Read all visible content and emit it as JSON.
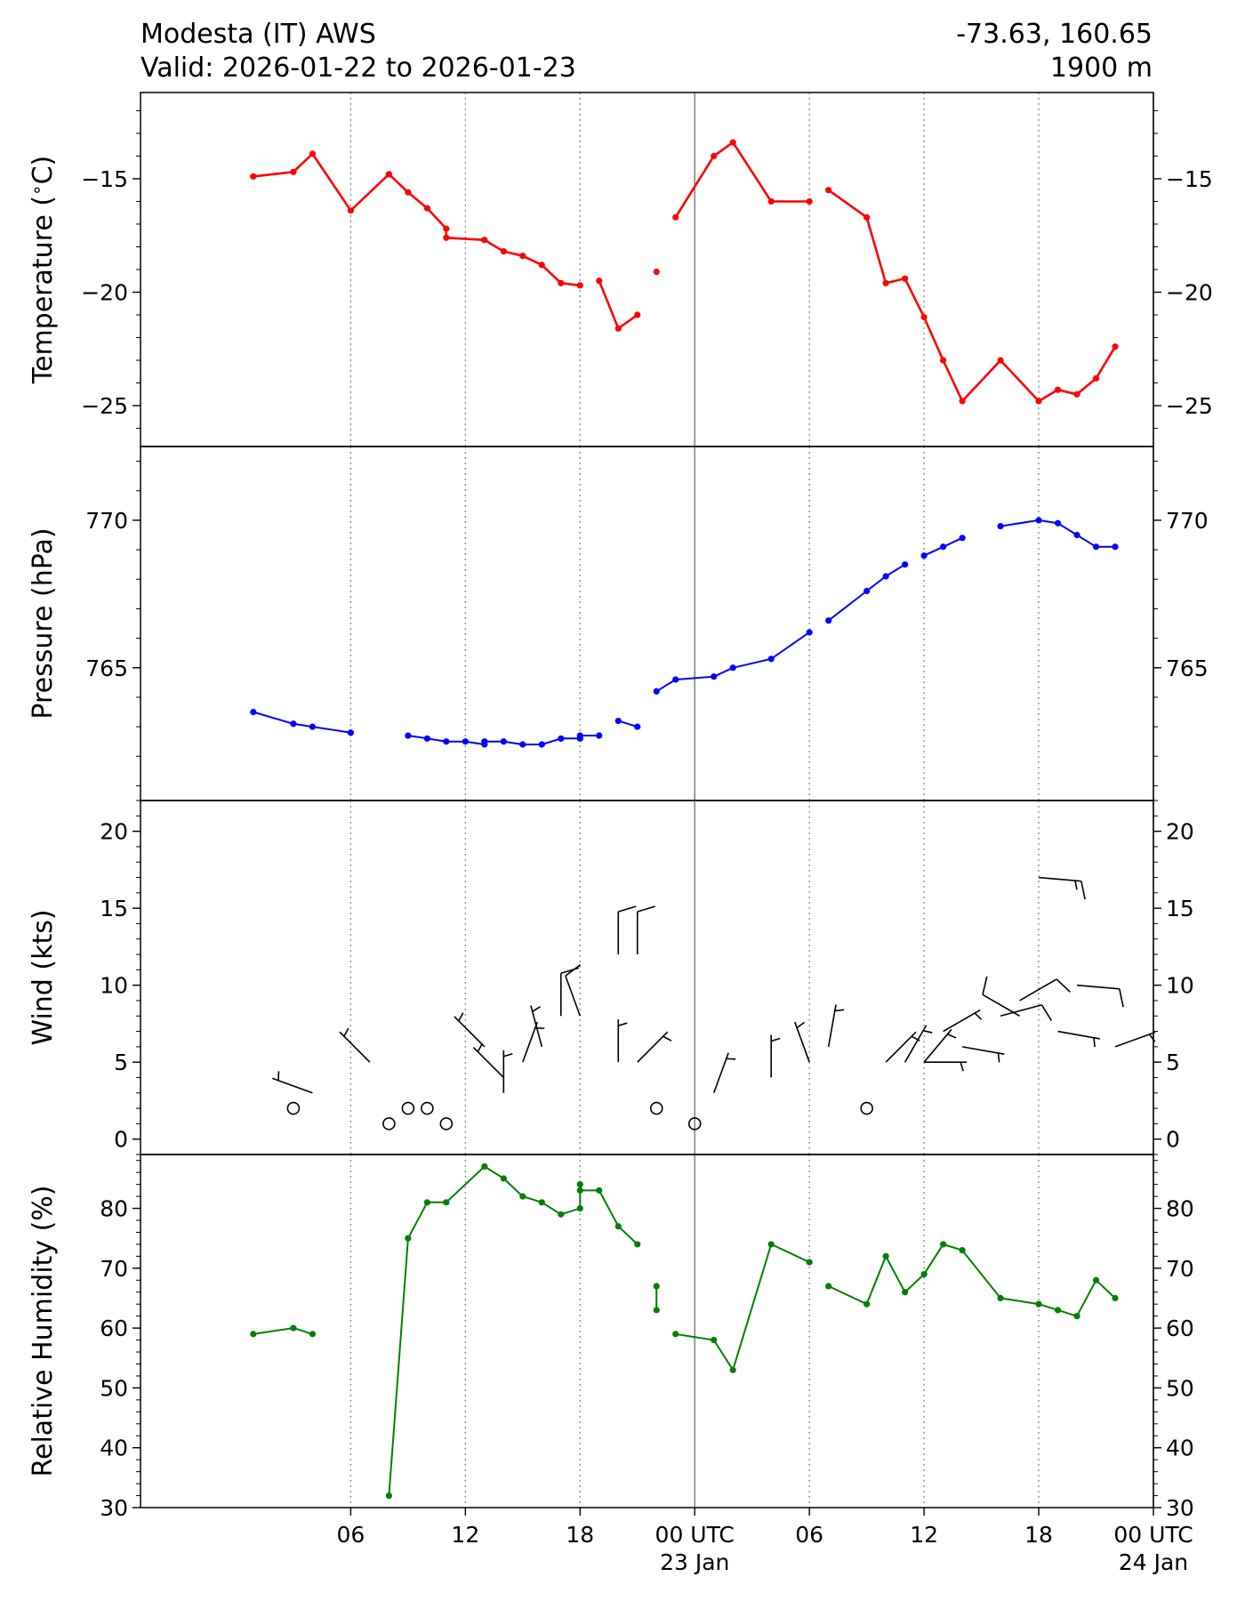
{
  "header": {
    "title": "Modesta (IT) AWS",
    "valid": "Valid: 2026-01-22 to 2026-01-23",
    "coords": "-73.63, 160.65",
    "elevation": "1900 m"
  },
  "x_axis": {
    "range_hours": [
      -5,
      48
    ],
    "major_ticks": [
      {
        "h": 6,
        "label": "06"
      },
      {
        "h": 12,
        "label": "12"
      },
      {
        "h": 18,
        "label": "18"
      },
      {
        "h": 24,
        "label": "00 UTC",
        "sub": "23 Jan"
      },
      {
        "h": 30,
        "label": "06"
      },
      {
        "h": 36,
        "label": "12"
      },
      {
        "h": 42,
        "label": "18"
      },
      {
        "h": 48,
        "label": "00 UTC",
        "sub": "24 Jan"
      }
    ],
    "day_lines": [
      24,
      48
    ],
    "dotted_lines": [
      6,
      12,
      18,
      30,
      36,
      42
    ]
  },
  "chart_data": [
    {
      "type": "line",
      "ylabel": "Temperature ($^\\circ$C)",
      "ylabel_text": "Temperature (",
      "ylabel_after": "C)",
      "color": "#ff0000",
      "ylim": [
        -26.8,
        -11.2
      ],
      "yticks": [
        -15,
        -20,
        -25
      ],
      "ytick_labels": [
        "−15",
        "−20",
        "−25"
      ],
      "minor_step": 1,
      "segments": [
        [
          [
            0.9,
            -14.9
          ],
          [
            3,
            -14.7
          ],
          [
            4,
            -13.9
          ],
          [
            6,
            -16.4
          ],
          [
            8,
            -14.8
          ],
          [
            9,
            -15.6
          ],
          [
            10,
            -16.3
          ],
          [
            11,
            -17.2
          ],
          [
            11,
            -17.6
          ],
          [
            13,
            -17.7
          ],
          [
            14,
            -18.2
          ],
          [
            15,
            -18.4
          ],
          [
            16,
            -18.8
          ],
          [
            17,
            -19.6
          ],
          [
            18,
            -19.7
          ]
        ],
        [
          [
            19,
            -19.5
          ],
          [
            20,
            -21.6
          ],
          [
            21,
            -21.0
          ]
        ],
        [
          [
            22,
            -19.1
          ]
        ],
        [
          [
            23,
            -16.7
          ],
          [
            25,
            -14.0
          ],
          [
            26,
            -13.4
          ],
          [
            28,
            -16.0
          ],
          [
            30,
            -16.0
          ]
        ],
        [
          [
            31,
            -15.5
          ],
          [
            33,
            -16.7
          ],
          [
            34,
            -19.6
          ],
          [
            35,
            -19.4
          ],
          [
            36,
            -21.1
          ],
          [
            37,
            -23.0
          ],
          [
            38,
            -24.8
          ],
          [
            40,
            -23.0
          ],
          [
            42,
            -24.8
          ],
          [
            43,
            -24.3
          ],
          [
            44,
            -24.5
          ],
          [
            45,
            -23.8
          ],
          [
            46,
            -22.4
          ]
        ]
      ]
    },
    {
      "type": "line",
      "ylabel": "Pressure (hPa)",
      "color": "#0000ff",
      "ylim": [
        760.5,
        772.5
      ],
      "yticks": [
        770,
        765
      ],
      "ytick_labels": [
        "770",
        "765"
      ],
      "minor_step": 1,
      "segments": [
        [
          [
            0.9,
            763.5
          ],
          [
            3,
            763.1
          ],
          [
            4,
            763.0
          ],
          [
            6,
            762.8
          ]
        ],
        [
          [
            9,
            762.7
          ],
          [
            10,
            762.6
          ],
          [
            11,
            762.5
          ],
          [
            12,
            762.5
          ],
          [
            13,
            762.4
          ],
          [
            13,
            762.5
          ],
          [
            14,
            762.5
          ],
          [
            15,
            762.4
          ],
          [
            16,
            762.4
          ],
          [
            17,
            762.6
          ],
          [
            18,
            762.6
          ],
          [
            18,
            762.7
          ],
          [
            19,
            762.7
          ]
        ],
        [
          [
            20,
            763.2
          ],
          [
            21,
            763.0
          ]
        ],
        [
          [
            22,
            764.2
          ],
          [
            23,
            764.6
          ],
          [
            25,
            764.7
          ],
          [
            26,
            765.0
          ],
          [
            28,
            765.3
          ],
          [
            30,
            766.2
          ]
        ],
        [
          [
            31,
            766.6
          ],
          [
            33,
            767.6
          ],
          [
            34,
            768.1
          ],
          [
            35,
            768.5
          ]
        ],
        [
          [
            36,
            768.8
          ],
          [
            37,
            769.1
          ],
          [
            38,
            769.4
          ]
        ],
        [
          [
            40,
            769.8
          ],
          [
            42,
            770.0
          ],
          [
            43,
            769.9
          ],
          [
            44,
            769.5
          ],
          [
            45,
            769.1
          ],
          [
            46,
            769.1
          ]
        ]
      ]
    },
    {
      "type": "scatter",
      "ylabel": "Wind (kts)",
      "color": "#000000",
      "ylim": [
        -1,
        22
      ],
      "yticks": [
        20,
        15,
        10,
        5,
        0
      ],
      "ytick_labels": [
        "20",
        "15",
        "10",
        "5",
        "0"
      ],
      "minor_step": 1,
      "points": [
        {
          "h": 3,
          "speed": 2,
          "dir": 0
        },
        {
          "h": 4,
          "speed": 3,
          "dir": 290
        },
        {
          "h": 7,
          "speed": 5,
          "dir": 315
        },
        {
          "h": 8,
          "speed": 1,
          "dir": 0
        },
        {
          "h": 9,
          "speed": 2,
          "dir": 0
        },
        {
          "h": 10,
          "speed": 2,
          "dir": 0
        },
        {
          "h": 11,
          "speed": 1,
          "dir": 30
        },
        {
          "h": 13,
          "speed": 6,
          "dir": 315
        },
        {
          "h": 14,
          "speed": 4,
          "dir": 315
        },
        {
          "h": 14,
          "speed": 3,
          "dir": 0
        },
        {
          "h": 15,
          "speed": 5,
          "dir": 20
        },
        {
          "h": 16,
          "speed": 6,
          "dir": 345
        },
        {
          "h": 17,
          "speed": 8,
          "dir": 360
        },
        {
          "h": 18,
          "speed": 8,
          "dir": 340
        },
        {
          "h": 20,
          "speed": 12,
          "dir": 360
        },
        {
          "h": 20,
          "speed": 5,
          "dir": 360
        },
        {
          "h": 21,
          "speed": 12,
          "dir": 360
        },
        {
          "h": 21,
          "speed": 5,
          "dir": 45
        },
        {
          "h": 22,
          "speed": 2,
          "dir": 0
        },
        {
          "h": 24,
          "speed": 1,
          "dir": 10
        },
        {
          "h": 25,
          "speed": 3,
          "dir": 20
        },
        {
          "h": 28,
          "speed": 4,
          "dir": 360
        },
        {
          "h": 30,
          "speed": 5,
          "dir": 340
        },
        {
          "h": 31,
          "speed": 6,
          "dir": 10
        },
        {
          "h": 33,
          "speed": 2,
          "dir": 30
        },
        {
          "h": 34,
          "speed": 5,
          "dir": 45
        },
        {
          "h": 35,
          "speed": 5,
          "dir": 30
        },
        {
          "h": 36,
          "speed": 5,
          "dir": 40
        },
        {
          "h": 36,
          "speed": 5,
          "dir": 90
        },
        {
          "h": 37,
          "speed": 7,
          "dir": 60
        },
        {
          "h": 38,
          "speed": 6,
          "dir": 100
        },
        {
          "h": 40,
          "speed": 8,
          "dir": 75
        },
        {
          "h": 41,
          "speed": 9,
          "dir": 60
        },
        {
          "h": 41,
          "speed": 8,
          "dir": 300
        },
        {
          "h": 42,
          "speed": 17,
          "dir": 95
        },
        {
          "h": 43,
          "speed": 7,
          "dir": 100
        },
        {
          "h": 44,
          "speed": 10,
          "dir": 95
        },
        {
          "h": 46,
          "speed": 6,
          "dir": 70
        }
      ]
    },
    {
      "type": "line",
      "ylabel": "Relative Humidity (%)",
      "color": "#008000",
      "ylim": [
        30,
        89
      ],
      "yticks": [
        80,
        70,
        60,
        50,
        40,
        30
      ],
      "ytick_labels": [
        "80",
        "70",
        "60",
        "50",
        "40",
        "30"
      ],
      "minor_step": 2,
      "segments": [
        [
          [
            0.9,
            59
          ],
          [
            3,
            60
          ],
          [
            4,
            59
          ]
        ],
        [
          [
            8,
            32
          ],
          [
            9,
            75
          ],
          [
            10,
            81
          ],
          [
            11,
            81
          ],
          [
            13,
            87
          ],
          [
            14,
            85
          ],
          [
            15,
            82
          ],
          [
            16,
            81
          ],
          [
            17,
            79
          ],
          [
            18,
            80
          ],
          [
            18,
            84
          ],
          [
            18,
            83
          ],
          [
            19,
            83
          ],
          [
            20,
            77
          ],
          [
            21,
            74
          ]
        ],
        [
          [
            22,
            67
          ],
          [
            22,
            63
          ]
        ],
        [
          [
            23,
            59
          ],
          [
            25,
            58
          ],
          [
            26,
            53
          ],
          [
            28,
            74
          ],
          [
            30,
            71
          ]
        ],
        [
          [
            31,
            67
          ],
          [
            33,
            64
          ],
          [
            34,
            72
          ],
          [
            35,
            66
          ],
          [
            36,
            69
          ],
          [
            37,
            74
          ],
          [
            38,
            73
          ],
          [
            40,
            65
          ],
          [
            42,
            64
          ],
          [
            43,
            63
          ],
          [
            44,
            62
          ],
          [
            45,
            68
          ],
          [
            46,
            65
          ]
        ]
      ]
    }
  ]
}
